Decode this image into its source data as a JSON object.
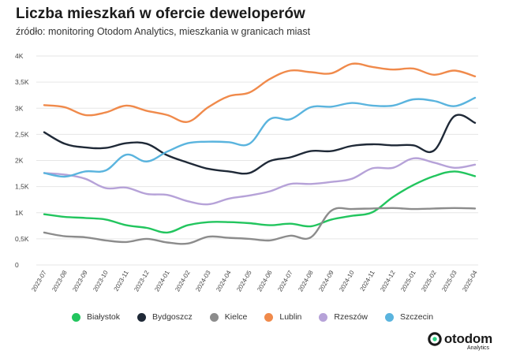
{
  "header": {
    "title": "Liczba mieszkań w ofercie deweloperów",
    "subtitle": "źródło: monitoring Otodom Analytics, mieszkania w granicach miast"
  },
  "brand": {
    "name": "otodom",
    "sub": "Analytics"
  },
  "chart_data": {
    "type": "line",
    "title": "Liczba mieszkań w ofercie deweloperów",
    "xlabel": "",
    "ylabel": "",
    "ylim": [
      0,
      4000
    ],
    "yticks": [
      0,
      500,
      1000,
      1500,
      2000,
      2500,
      3000,
      3500,
      4000
    ],
    "ytick_labels": [
      "0",
      "0,5K",
      "1K",
      "1,5K",
      "2K",
      "2,5K",
      "3K",
      "3,5K",
      "4K"
    ],
    "grid": true,
    "legend_position": "bottom",
    "categories": [
      "2023-07",
      "2023-08",
      "2023-09",
      "2023-10",
      "2023-11",
      "2023-12",
      "2024-01",
      "2024-02",
      "2024-03",
      "2024-04",
      "2024-05",
      "2024-06",
      "2024-07",
      "2024-08",
      "2024-09",
      "2024-10",
      "2024-11",
      "2024-12",
      "2025-01",
      "2025-02",
      "2025-03",
      "2025-04"
    ],
    "series": [
      {
        "name": "Białystok",
        "color": "#22c55e",
        "values": [
          970,
          920,
          900,
          870,
          760,
          710,
          620,
          760,
          820,
          820,
          800,
          760,
          790,
          740,
          870,
          940,
          1010,
          1300,
          1530,
          1700,
          1790,
          1700
        ]
      },
      {
        "name": "Bydgoszcz",
        "color": "#1f2937",
        "values": [
          2540,
          2320,
          2250,
          2240,
          2330,
          2320,
          2100,
          1960,
          1840,
          1790,
          1760,
          1990,
          2060,
          2180,
          2180,
          2280,
          2310,
          2290,
          2290,
          2190,
          2850,
          2720
        ]
      },
      {
        "name": "Kielce",
        "color": "#8c8c8c",
        "values": [
          620,
          550,
          530,
          470,
          440,
          500,
          430,
          410,
          540,
          520,
          500,
          470,
          560,
          530,
          1040,
          1070,
          1080,
          1090,
          1070,
          1080,
          1090,
          1080
        ]
      },
      {
        "name": "Lublin",
        "color": "#f08a4b",
        "values": [
          3060,
          3020,
          2870,
          2920,
          3050,
          2950,
          2870,
          2740,
          3020,
          3230,
          3300,
          3560,
          3720,
          3690,
          3670,
          3850,
          3790,
          3740,
          3760,
          3640,
          3720,
          3610
        ]
      },
      {
        "name": "Rzeszów",
        "color": "#b6a2d8",
        "values": [
          1760,
          1730,
          1650,
          1470,
          1480,
          1360,
          1340,
          1220,
          1160,
          1270,
          1330,
          1410,
          1550,
          1550,
          1590,
          1650,
          1850,
          1860,
          2040,
          1960,
          1860,
          1920
        ]
      },
      {
        "name": "Szczecin",
        "color": "#5ab4de",
        "values": [
          1760,
          1690,
          1790,
          1810,
          2110,
          1980,
          2170,
          2330,
          2360,
          2350,
          2320,
          2790,
          2790,
          3020,
          3030,
          3100,
          3050,
          3050,
          3170,
          3140,
          3040,
          3200
        ]
      }
    ]
  }
}
